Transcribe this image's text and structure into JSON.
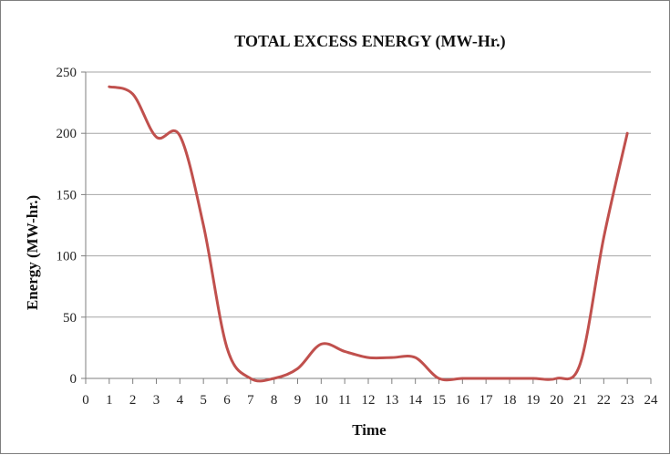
{
  "chart_data": {
    "type": "line",
    "title": "TOTAL EXCESS ENERGY (MW-Hr.)",
    "xlabel": "Time",
    "ylabel": "Energy (MW-hr.)",
    "xlim": [
      0,
      24
    ],
    "ylim": [
      0,
      250
    ],
    "x_ticks": [
      0,
      1,
      2,
      3,
      4,
      5,
      6,
      7,
      8,
      9,
      10,
      11,
      12,
      13,
      14,
      15,
      16,
      17,
      18,
      19,
      20,
      21,
      22,
      23,
      24
    ],
    "y_ticks": [
      0,
      50,
      100,
      150,
      200,
      250
    ],
    "grid": "horizontal",
    "legend": "none",
    "series": [
      {
        "color": "#c0504d",
        "x": [
          1,
          2,
          3,
          4,
          5,
          6,
          7,
          8,
          9,
          10,
          11,
          12,
          13,
          14,
          15,
          16,
          17,
          18,
          19,
          20,
          21,
          22,
          23
        ],
        "values": [
          238,
          232,
          197,
          198,
          125,
          25,
          0,
          0,
          8,
          28,
          22,
          17,
          17,
          17,
          0,
          0,
          0,
          0,
          0,
          0,
          12,
          115,
          200
        ]
      }
    ]
  }
}
